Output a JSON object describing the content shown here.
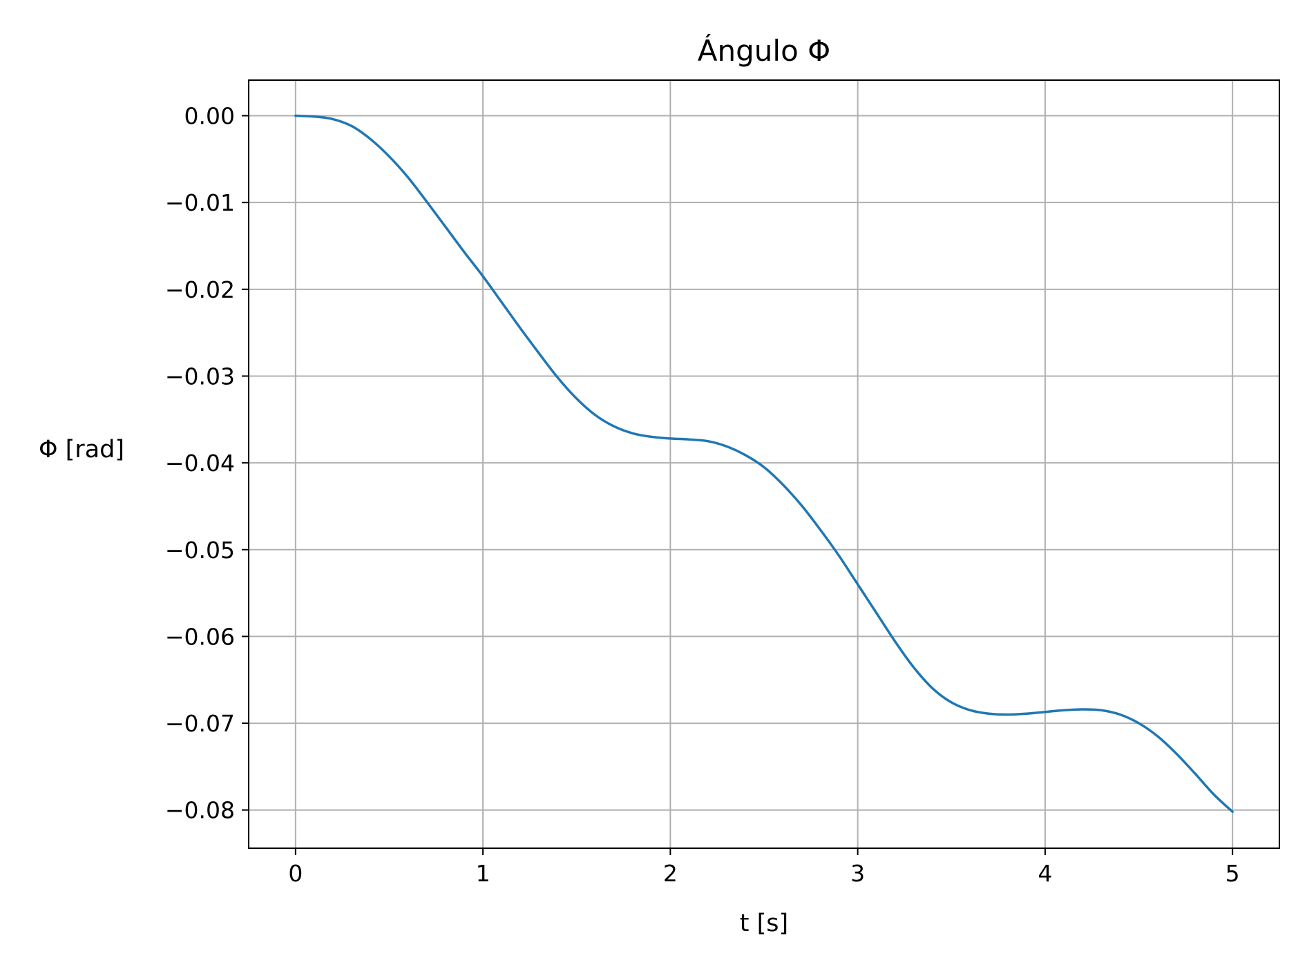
{
  "chart_data": {
    "type": "line",
    "title": "Ángulo Φ",
    "xlabel": "t [s]",
    "ylabel": "Φ [rad]",
    "xlim": [
      -0.25,
      5.25
    ],
    "ylim": [
      -0.0844,
      0.0041
    ],
    "xticks": [
      0,
      1,
      2,
      3,
      4,
      5
    ],
    "xtick_labels": [
      "0",
      "1",
      "2",
      "3",
      "4",
      "5"
    ],
    "yticks": [
      0.0,
      -0.01,
      -0.02,
      -0.03,
      -0.04,
      -0.05,
      -0.06,
      -0.07,
      -0.08
    ],
    "ytick_labels": [
      "0.00",
      "−0.01",
      "−0.02",
      "−0.03",
      "−0.04",
      "−0.05",
      "−0.06",
      "−0.07",
      "−0.08"
    ],
    "grid": true,
    "series": [
      {
        "color": "#1f77b4",
        "x": [
          0,
          0.1,
          0.2,
          0.3,
          0.4,
          0.5,
          0.6,
          0.7,
          0.8,
          0.9,
          1.0,
          1.1,
          1.2,
          1.3,
          1.4,
          1.5,
          1.6,
          1.7,
          1.8,
          1.9,
          2.0,
          2.1,
          2.2,
          2.3,
          2.4,
          2.5,
          2.6,
          2.7,
          2.8,
          2.9,
          3.0,
          3.1,
          3.2,
          3.3,
          3.4,
          3.5,
          3.6,
          3.7,
          3.8,
          3.9,
          4.0,
          4.1,
          4.2,
          4.3,
          4.4,
          4.5,
          4.6,
          4.7,
          4.8,
          4.9,
          5.0
        ],
        "y": [
          0.0,
          -0.0001,
          -0.0004,
          -0.0012,
          -0.0027,
          -0.0047,
          -0.0071,
          -0.0099,
          -0.0128,
          -0.0157,
          -0.0185,
          -0.0215,
          -0.0245,
          -0.0274,
          -0.0302,
          -0.0326,
          -0.0345,
          -0.0358,
          -0.0366,
          -0.037,
          -0.0372,
          -0.0373,
          -0.0375,
          -0.0381,
          -0.0391,
          -0.0405,
          -0.0425,
          -0.0449,
          -0.0477,
          -0.0507,
          -0.054,
          -0.0573,
          -0.0606,
          -0.0636,
          -0.066,
          -0.0676,
          -0.0685,
          -0.0689,
          -0.069,
          -0.0689,
          -0.0687,
          -0.0685,
          -0.0684,
          -0.0685,
          -0.069,
          -0.07,
          -0.0715,
          -0.0735,
          -0.0758,
          -0.0782,
          -0.0802
        ]
      }
    ]
  }
}
